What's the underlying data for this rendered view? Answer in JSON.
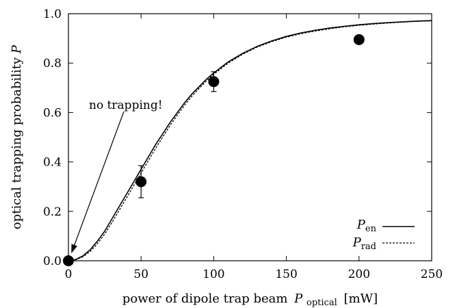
{
  "chart_data": {
    "type": "scatter",
    "title": "",
    "xlabel": "power of dipole trap beam",
    "xlabel_symbol": "P",
    "xlabel_subscript": "optical",
    "xlabel_unit": "[mW]",
    "ylabel": "optical trapping probability",
    "ylabel_symbol": "P",
    "xlim": [
      0,
      250
    ],
    "ylim": [
      0.0,
      1.0
    ],
    "xticks": [
      0,
      50,
      100,
      150,
      200,
      250
    ],
    "yticks": [
      "0.0",
      "0.2",
      "0.4",
      "0.6",
      "0.8",
      "1.0"
    ],
    "grid": false,
    "legend_position": "bottom-right",
    "points": [
      {
        "x": 0,
        "y": 0.0,
        "err": null
      },
      {
        "x": 50,
        "y": 0.32,
        "err": 0.065
      },
      {
        "x": 100,
        "y": 0.725,
        "err": 0.04
      },
      {
        "x": 200,
        "y": 0.895,
        "err": null
      }
    ],
    "series": [
      {
        "name": "P",
        "name_subscript": "en",
        "style": "solid",
        "x": [
          0,
          5,
          10,
          15,
          20,
          25,
          30,
          35,
          40,
          45,
          50,
          55,
          60,
          65,
          70,
          75,
          80,
          85,
          90,
          95,
          100,
          110,
          120,
          130,
          140,
          150,
          160,
          170,
          180,
          190,
          200,
          210,
          220,
          230,
          240,
          250
        ],
        "y": [
          0.0,
          0.005,
          0.02,
          0.045,
          0.08,
          0.12,
          0.17,
          0.22,
          0.27,
          0.32,
          0.37,
          0.42,
          0.47,
          0.515,
          0.56,
          0.6,
          0.64,
          0.675,
          0.705,
          0.735,
          0.76,
          0.805,
          0.84,
          0.868,
          0.89,
          0.908,
          0.922,
          0.933,
          0.942,
          0.949,
          0.955,
          0.96,
          0.964,
          0.967,
          0.97,
          0.972
        ]
      },
      {
        "name": "P",
        "name_subscript": "rad",
        "style": "dashed",
        "x": [
          0,
          5,
          10,
          15,
          20,
          25,
          30,
          35,
          40,
          45,
          50,
          55,
          60,
          65,
          70,
          75,
          80,
          85,
          90,
          95,
          100,
          110,
          120,
          130,
          140,
          150,
          160,
          170,
          180,
          190,
          200,
          210,
          220,
          230,
          240,
          250
        ],
        "y": [
          0.0,
          0.004,
          0.016,
          0.038,
          0.07,
          0.108,
          0.155,
          0.205,
          0.255,
          0.305,
          0.355,
          0.405,
          0.455,
          0.502,
          0.548,
          0.59,
          0.63,
          0.666,
          0.698,
          0.728,
          0.755,
          0.8,
          0.836,
          0.865,
          0.887,
          0.905,
          0.919,
          0.93,
          0.939,
          0.947,
          0.953,
          0.958,
          0.962,
          0.966,
          0.969,
          0.971
        ]
      }
    ],
    "annotations": [
      {
        "text": "no trapping!",
        "points_to": {
          "x": 2,
          "y": 0.03
        }
      }
    ]
  }
}
